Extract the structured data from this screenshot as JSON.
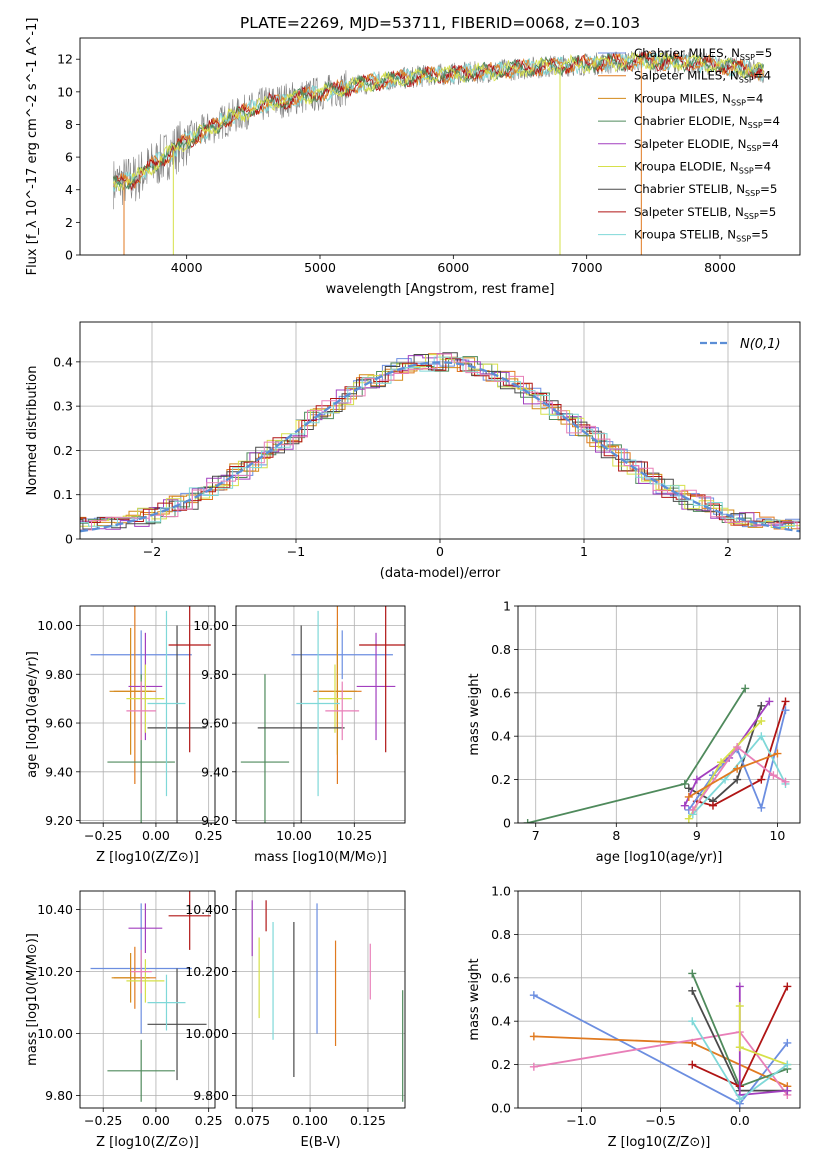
{
  "title": "PLATE=2269, MJD=53711, FIBERID=0068, z=0.103",
  "colors": {
    "chabrier_miles": "#6c8ee0",
    "salpeter_miles": "#e07a20",
    "kroupa_miles": "#d38a1a",
    "chabrier_elodie": "#4f8a5c",
    "salpeter_elodie": "#a23fbf",
    "kroupa_elodie": "#d6e04a",
    "chabrier_stelib": "#4a4a4a",
    "salpeter_stelib": "#b01515",
    "kroupa_stelib": "#7fd8d8",
    "gaussian": "#5b8ed6",
    "data": "#808080",
    "pink": "#e87fb8"
  },
  "chart_data": [
    {
      "id": "spectrum",
      "type": "line",
      "title": "PLATE=2269, MJD=53711, FIBERID=0068, z=0.103",
      "xlabel": "wavelength [Angstrom, rest frame]",
      "ylabel": "Flux [f_λ 10^-17 erg cm^-2 s^-1 A^-1]",
      "xlim": [
        3200,
        8600
      ],
      "ylim": [
        0,
        13.3
      ],
      "xticks": [
        4000,
        5000,
        6000,
        7000,
        8000
      ],
      "yticks": [
        0,
        2,
        4,
        6,
        8,
        10,
        12
      ],
      "continuum": {
        "x": [
          3450,
          3600,
          3800,
          4000,
          4300,
          4600,
          5000,
          5400,
          5800,
          6200,
          6600,
          7000,
          7400,
          7800,
          8100,
          8330
        ],
        "y": [
          4.4,
          4.6,
          5.8,
          7.0,
          8.3,
          9.3,
          9.9,
          10.6,
          11.0,
          11.2,
          11.5,
          11.7,
          11.9,
          11.8,
          11.5,
          11.2
        ]
      },
      "legend_position": "upper right",
      "series": [
        {
          "name": "Chabrier MILES, N_SSP=5"
        },
        {
          "name": "Salpeter MILES, N_SSP=4"
        },
        {
          "name": "Kroupa MILES, N_SSP=4"
        },
        {
          "name": "Chabrier ELODIE, N_SSP=4"
        },
        {
          "name": "Salpeter ELODIE, N_SSP=4"
        },
        {
          "name": "Kroupa ELODIE, N_SSP=4"
        },
        {
          "name": "Chabrier STELIB, N_SSP=5"
        },
        {
          "name": "Salpeter STELIB, N_SSP=5"
        },
        {
          "name": "Kroupa STELIB, N_SSP=5"
        }
      ]
    },
    {
      "id": "residuals",
      "type": "bar",
      "xlabel": "(data-model)/error",
      "ylabel": "Normed distribution",
      "xlim": [
        -2.5,
        2.5
      ],
      "ylim": [
        0,
        0.49
      ],
      "xticks": [
        -2,
        -1,
        0,
        1,
        2
      ],
      "yticks": [
        0.0,
        0.1,
        0.2,
        0.3,
        0.4
      ],
      "legend": "N(0,1)",
      "grid": true
    },
    {
      "id": "age_vs_Z",
      "type": "scatter",
      "xlabel": "Z [log10(Z/Z⊙)]",
      "ylabel": "age [log10(age/yr)]",
      "xlim": [
        -0.36,
        0.28
      ],
      "ylim": [
        9.19,
        10.08
      ],
      "xticks": [
        -0.25,
        0.0,
        0.25
      ],
      "yticks": [
        9.2,
        9.4,
        9.6,
        9.8,
        10.0
      ],
      "points": [
        {
          "x": -0.07,
          "y": 9.88,
          "xerr": 0.24,
          "yerr": 0.1,
          "c": "chabrier_miles"
        },
        {
          "x": -0.1,
          "y": 9.73,
          "xerr": 0.1,
          "yerr": 0.38,
          "c": "salpeter_miles"
        },
        {
          "x": -0.12,
          "y": 9.73,
          "xerr": 0.1,
          "yerr": 0.26,
          "c": "kroupa_miles"
        },
        {
          "x": -0.07,
          "y": 9.44,
          "xerr": 0.16,
          "yerr": 0.36,
          "c": "chabrier_elodie"
        },
        {
          "x": -0.05,
          "y": 9.75,
          "xerr": 0.08,
          "yerr": 0.22,
          "c": "salpeter_elodie"
        },
        {
          "x": -0.05,
          "y": 9.7,
          "xerr": 0.09,
          "yerr": 0.14,
          "c": "kroupa_elodie"
        },
        {
          "x": 0.1,
          "y": 9.58,
          "xerr": 0.14,
          "yerr": 0.42,
          "c": "chabrier_stelib"
        },
        {
          "x": 0.16,
          "y": 9.92,
          "xerr": 0.1,
          "yerr": 0.44,
          "c": "salpeter_stelib"
        },
        {
          "x": 0.05,
          "y": 9.68,
          "xerr": 0.09,
          "yerr": 0.38,
          "c": "kroupa_stelib"
        },
        {
          "x": -0.07,
          "y": 9.65,
          "xerr": 0.07,
          "yerr": 0.12,
          "c": "pink"
        }
      ]
    },
    {
      "id": "age_vs_mass",
      "type": "scatter",
      "xlabel": "mass [log10(M/M⊙)]",
      "ylabel": "",
      "xlim": [
        9.76,
        10.46
      ],
      "ylim": [
        9.19,
        10.08
      ],
      "xticks": [
        10.0,
        10.25
      ],
      "yticks": [
        9.2,
        9.4,
        9.6,
        9.8,
        10.0
      ],
      "points": [
        {
          "x": 10.2,
          "y": 9.88,
          "xerr": 0.21,
          "yerr": 0.1,
          "c": "chabrier_miles"
        },
        {
          "x": 10.18,
          "y": 9.73,
          "xerr": 0.1,
          "yerr": 0.38,
          "c": "salpeter_miles"
        },
        {
          "x": 10.18,
          "y": 9.73,
          "xerr": 0.08,
          "yerr": 0.26,
          "c": "kroupa_miles"
        },
        {
          "x": 9.88,
          "y": 9.44,
          "xerr": 0.1,
          "yerr": 0.36,
          "c": "chabrier_elodie"
        },
        {
          "x": 10.34,
          "y": 9.75,
          "xerr": 0.08,
          "yerr": 0.22,
          "c": "salpeter_elodie"
        },
        {
          "x": 10.17,
          "y": 9.7,
          "xerr": 0.07,
          "yerr": 0.14,
          "c": "kroupa_elodie"
        },
        {
          "x": 10.03,
          "y": 9.58,
          "xerr": 0.18,
          "yerr": 0.42,
          "c": "chabrier_stelib"
        },
        {
          "x": 10.38,
          "y": 9.92,
          "xerr": 0.11,
          "yerr": 0.44,
          "c": "salpeter_stelib"
        },
        {
          "x": 10.1,
          "y": 9.68,
          "xerr": 0.09,
          "yerr": 0.38,
          "c": "kroupa_stelib"
        },
        {
          "x": 10.2,
          "y": 9.65,
          "xerr": 0.07,
          "yerr": 0.12,
          "c": "pink"
        }
      ]
    },
    {
      "id": "mass_weight_vs_age",
      "type": "line",
      "xlabel": "age [log10(age/yr)]",
      "ylabel": "mass weight",
      "xlim": [
        6.78,
        10.28
      ],
      "ylim": [
        0,
        1.0
      ],
      "xticks": [
        7,
        8,
        9,
        10
      ],
      "yticks": [
        0.0,
        0.2,
        0.4,
        0.6,
        0.8,
        1.0
      ],
      "series": [
        {
          "c": "chabrier_elodie",
          "x": [
            6.9,
            8.85,
            9.6
          ],
          "y": [
            0.0,
            0.18,
            0.62
          ]
        },
        {
          "c": "chabrier_stelib",
          "x": [
            8.9,
            9.2,
            9.5,
            9.8
          ],
          "y": [
            0.16,
            0.1,
            0.2,
            0.54
          ]
        },
        {
          "c": "salpeter_elodie",
          "x": [
            8.85,
            9.0,
            9.4,
            9.9
          ],
          "y": [
            0.08,
            0.2,
            0.3,
            0.56
          ]
        },
        {
          "c": "salpeter_stelib",
          "x": [
            9.0,
            9.2,
            9.8,
            10.1
          ],
          "y": [
            0.1,
            0.08,
            0.2,
            0.56
          ]
        },
        {
          "c": "chabrier_miles",
          "x": [
            8.9,
            9.2,
            9.5,
            9.8,
            10.1
          ],
          "y": [
            0.06,
            0.22,
            0.34,
            0.07,
            0.52
          ]
        },
        {
          "c": "kroupa_elodie",
          "x": [
            8.9,
            9.3,
            9.8
          ],
          "y": [
            0.02,
            0.28,
            0.47
          ]
        },
        {
          "c": "kroupa_stelib",
          "x": [
            8.95,
            9.35,
            9.8,
            10.1
          ],
          "y": [
            0.04,
            0.2,
            0.4,
            0.18
          ]
        },
        {
          "c": "pink",
          "x": [
            8.95,
            9.5,
            9.95,
            10.1
          ],
          "y": [
            0.06,
            0.35,
            0.22,
            0.19
          ]
        },
        {
          "c": "salpeter_miles",
          "x": [
            8.9,
            9.5,
            10.0
          ],
          "y": [
            0.12,
            0.25,
            0.32
          ]
        }
      ]
    },
    {
      "id": "mass_vs_Z",
      "type": "scatter",
      "xlabel": "Z [log10(Z/Z⊙)]",
      "ylabel": "mass [log10(M/M⊙)]",
      "xlim": [
        -0.36,
        0.28
      ],
      "ylim": [
        9.76,
        10.46
      ],
      "xticks": [
        -0.25,
        0.0,
        0.25
      ],
      "yticks": [
        9.8,
        10.0,
        10.2,
        10.4
      ],
      "points": [
        {
          "x": -0.07,
          "y": 10.21,
          "xerr": 0.24,
          "yerr": 0.21,
          "c": "chabrier_miles"
        },
        {
          "x": -0.1,
          "y": 10.18,
          "xerr": 0.1,
          "yerr": 0.1,
          "c": "salpeter_miles"
        },
        {
          "x": -0.12,
          "y": 10.18,
          "xerr": 0.09,
          "yerr": 0.08,
          "c": "kroupa_miles"
        },
        {
          "x": -0.07,
          "y": 9.88,
          "xerr": 0.16,
          "yerr": 0.1,
          "c": "chabrier_elodie"
        },
        {
          "x": -0.05,
          "y": 10.34,
          "xerr": 0.08,
          "yerr": 0.08,
          "c": "salpeter_elodie"
        },
        {
          "x": -0.05,
          "y": 10.17,
          "xerr": 0.09,
          "yerr": 0.07,
          "c": "kroupa_elodie"
        },
        {
          "x": 0.1,
          "y": 10.03,
          "xerr": 0.14,
          "yerr": 0.18,
          "c": "chabrier_stelib"
        },
        {
          "x": 0.16,
          "y": 10.38,
          "xerr": 0.1,
          "yerr": 0.11,
          "c": "salpeter_stelib"
        },
        {
          "x": 0.05,
          "y": 10.1,
          "xerr": 0.09,
          "yerr": 0.09,
          "c": "kroupa_stelib"
        },
        {
          "x": -0.07,
          "y": 10.2,
          "xerr": 0.05,
          "yerr": 0.07,
          "c": "pink"
        }
      ]
    },
    {
      "id": "mass_vs_ebv",
      "type": "scatter",
      "xlabel": "E(B-V)",
      "ylabel": "",
      "xlim": [
        0.068,
        0.141
      ],
      "ylim": [
        9.76,
        10.46
      ],
      "xticks": [
        0.075,
        0.1,
        0.125
      ],
      "yticks": [
        9.8,
        10.0,
        10.2,
        10.4
      ],
      "points": [
        {
          "x": 0.103,
          "y": 10.21,
          "xerr": 0.0,
          "yerr": 0.21,
          "c": "chabrier_miles"
        },
        {
          "x": 0.111,
          "y": 10.13,
          "xerr": 0.0,
          "yerr": 0.17,
          "c": "salpeter_miles"
        },
        {
          "x": 0.075,
          "y": 10.34,
          "xerr": 0.0,
          "yerr": 0.09,
          "c": "salpeter_elodie"
        },
        {
          "x": 0.078,
          "y": 10.18,
          "xerr": 0.0,
          "yerr": 0.13,
          "c": "kroupa_elodie"
        },
        {
          "x": 0.081,
          "y": 10.38,
          "xerr": 0.0,
          "yerr": 0.05,
          "c": "salpeter_stelib"
        },
        {
          "x": 0.084,
          "y": 10.17,
          "xerr": 0.0,
          "yerr": 0.19,
          "c": "kroupa_stelib"
        },
        {
          "x": 0.093,
          "y": 10.11,
          "xerr": 0.0,
          "yerr": 0.25,
          "c": "chabrier_stelib"
        },
        {
          "x": 0.126,
          "y": 10.2,
          "xerr": 0.0,
          "yerr": 0.09,
          "c": "pink"
        },
        {
          "x": 0.14,
          "y": 9.96,
          "xerr": 0.0,
          "yerr": 0.18,
          "c": "chabrier_elodie"
        }
      ]
    },
    {
      "id": "mass_weight_vs_Z",
      "type": "line",
      "xlabel": "Z [log10(Z/Z⊙)]",
      "ylabel": "mass weight",
      "xlim": [
        -1.4,
        0.38
      ],
      "ylim": [
        0,
        1.0
      ],
      "xticks": [
        -1.0,
        -0.5,
        0.0
      ],
      "yticks": [
        0.0,
        0.2,
        0.4,
        0.6,
        0.8,
        1.0
      ],
      "series": [
        {
          "c": "chabrier_miles",
          "x": [
            -1.3,
            0.0,
            0.3
          ],
          "y": [
            0.52,
            0.02,
            0.3
          ]
        },
        {
          "c": "salpeter_miles",
          "x": [
            -1.3,
            -0.3,
            0.3
          ],
          "y": [
            0.33,
            0.3,
            0.1
          ]
        },
        {
          "c": "pink",
          "x": [
            -1.3,
            0.0,
            0.3
          ],
          "y": [
            0.19,
            0.35,
            0.06
          ]
        },
        {
          "c": "chabrier_elodie",
          "x": [
            -0.3,
            0.0,
            0.3
          ],
          "y": [
            0.62,
            0.1,
            0.18
          ]
        },
        {
          "c": "chabrier_stelib",
          "x": [
            -0.3,
            0.0,
            0.3
          ],
          "y": [
            0.54,
            0.08,
            0.08
          ]
        },
        {
          "c": "salpeter_stelib",
          "x": [
            -0.3,
            0.0,
            0.3
          ],
          "y": [
            0.2,
            0.1,
            0.56
          ]
        },
        {
          "c": "salpeter_elodie",
          "x": [
            0.0,
            0.0,
            0.3
          ],
          "y": [
            0.56,
            0.06,
            0.08
          ]
        },
        {
          "c": "kroupa_elodie",
          "x": [
            0.0,
            0.0,
            0.3
          ],
          "y": [
            0.47,
            0.28,
            0.2
          ]
        },
        {
          "c": "kroupa_stelib",
          "x": [
            -0.3,
            0.0,
            0.3
          ],
          "y": [
            0.4,
            0.04,
            0.2
          ]
        }
      ]
    }
  ]
}
